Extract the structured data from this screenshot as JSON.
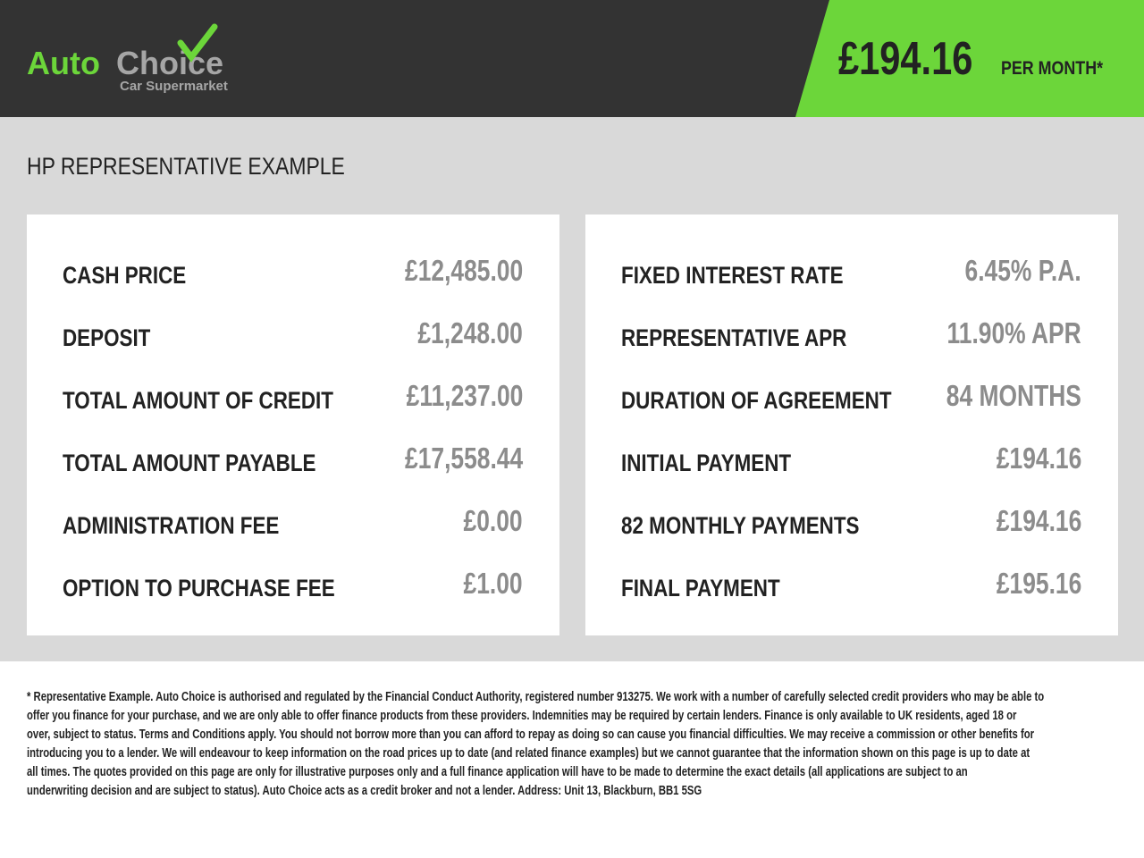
{
  "header": {
    "logo": {
      "word1": "Auto",
      "word2": "Choice",
      "tagline": "Car Supermarket"
    },
    "price": "£194.16",
    "price_suffix": "PER MONTH*",
    "colors": {
      "dark": "#333333",
      "accent": "#6cd63a"
    }
  },
  "title": "HP REPRESENTATIVE EXAMPLE",
  "left_card": [
    {
      "label": "CASH PRICE",
      "value": "£12,485.00"
    },
    {
      "label": "DEPOSIT",
      "value": "£1,248.00"
    },
    {
      "label": "TOTAL AMOUNT OF CREDIT",
      "value": "£11,237.00"
    },
    {
      "label": "TOTAL AMOUNT PAYABLE",
      "value": "£17,558.44"
    },
    {
      "label": "ADMINISTRATION FEE",
      "value": "£0.00"
    },
    {
      "label": "OPTION TO PURCHASE FEE",
      "value": "£1.00"
    }
  ],
  "right_card": [
    {
      "label": "FIXED INTEREST RATE",
      "value": "6.45% P.A."
    },
    {
      "label": "REPRESENTATIVE APR",
      "value": "11.90% APR"
    },
    {
      "label": "DURATION OF AGREEMENT",
      "value": "84 MONTHS"
    },
    {
      "label": "INITIAL PAYMENT",
      "value": "£194.16"
    },
    {
      "label": "82 MONTHLY PAYMENTS",
      "value": "£194.16"
    },
    {
      "label": "FINAL PAYMENT",
      "value": "£195.16"
    }
  ],
  "disclaimer": [
    "* Representative Example. Auto Choice is authorised and regulated by the Financial Conduct Authority, registered number 913275. We work with a number of carefully selected credit providers who may be able to",
    "offer you finance for your purchase, and we are only able to offer finance products from these providers. Indemnities may be required by certain lenders. Finance is only available to UK residents, aged 18 or",
    "over, subject to status. Terms and Conditions apply. You should not borrow more than you can afford to repay as doing so can cause you financial difficulties. We may receive a commission or other benefits for",
    "introducing you to a lender. We will endeavour to keep information on the road prices up to date (and related finance examples) but we cannot guarantee that the information shown on this page is up to date at",
    "all times. The quotes provided on this page are only for illustrative purposes only and a full finance application will have to be made to determine the exact details (all applications are subject to an",
    "underwriting decision and are subject to status). Auto Choice acts as a credit broker and not a lender. Address: Unit 13, Blackburn, BB1 5SG"
  ]
}
